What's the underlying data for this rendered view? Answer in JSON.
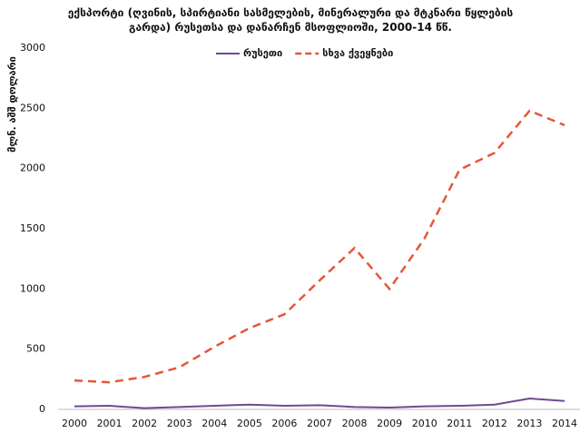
{
  "chart_data": {
    "type": "line",
    "title": "ექსპორტი (ღვინის, სპირტიანი სასმელების, მინერალური და მტკნარი წყლების გარდა) რუსეთსა და დანარჩენ მსოფლიოში, 2000-14 წწ.",
    "y_label": "მლნ. აშშ დოლარი",
    "categories": [
      "2000",
      "2001",
      "2002",
      "2003",
      "2004",
      "2005",
      "2006",
      "2007",
      "2008",
      "2009",
      "2010",
      "2011",
      "2012",
      "2013",
      "2014"
    ],
    "series": [
      {
        "name": "რუსეთი",
        "color": "#6f4a8e",
        "dashed": false,
        "values": [
          25,
          30,
          10,
          20,
          30,
          40,
          30,
          35,
          20,
          15,
          25,
          30,
          40,
          90,
          70
        ]
      },
      {
        "name": "სხვა ქვეყნები",
        "color": "#e8553a",
        "dashed": true,
        "values": [
          240,
          225,
          270,
          350,
          520,
          675,
          790,
          1070,
          1340,
          1000,
          1420,
          1990,
          2130,
          2480,
          2360
        ]
      }
    ],
    "ylim": [
      0,
      3000
    ],
    "yticks": [
      0,
      500,
      1000,
      1500,
      2000,
      2500,
      3000
    ],
    "grid": false,
    "legend": "top"
  }
}
